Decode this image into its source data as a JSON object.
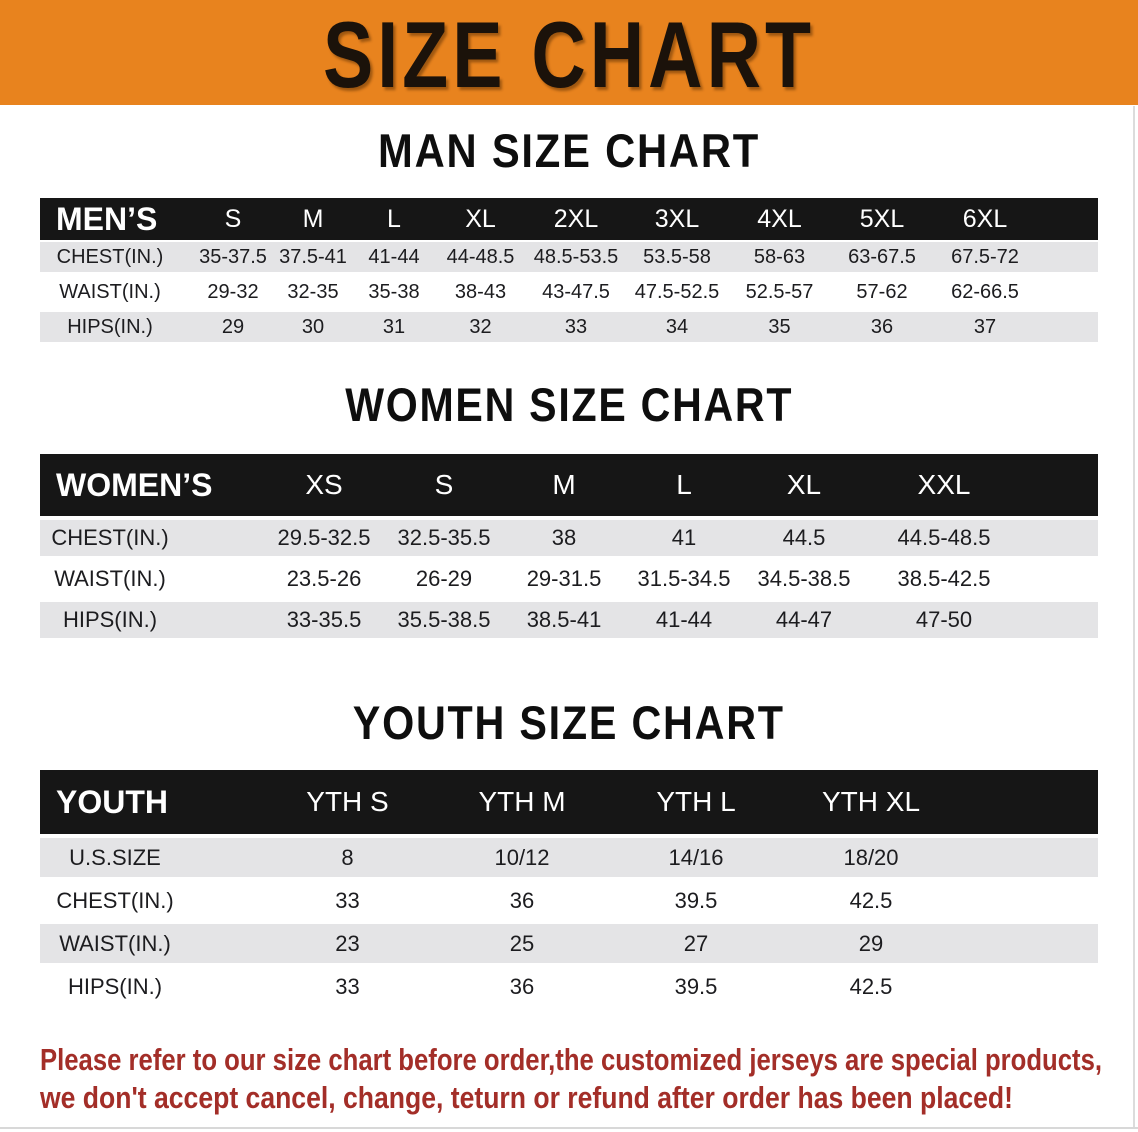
{
  "banner": {
    "title": "SIZE CHART",
    "bg": "#e8831e"
  },
  "sections": {
    "men_title": "MAN SIZE CHART",
    "women_title": "WOMEN SIZE CHART",
    "youth_title": "YOUTH SIZE CHART"
  },
  "note_line1": "Please refer to our size chart before order,the customized jerseys are special products,",
  "note_line2": "we don't accept cancel, change, teturn or refund after order has been placed!",
  "note_color": "#a32e28",
  "chart_data": [
    {
      "type": "table",
      "title": "MAN SIZE CHART",
      "corner": "MEN’S",
      "columns": [
        "S",
        "M",
        "L",
        "XL",
        "2XL",
        "3XL",
        "4XL",
        "5XL",
        "6XL"
      ],
      "rows": [
        {
          "label": "CHEST(IN.)",
          "values": [
            "35-37.5",
            "37.5-41",
            "41-44",
            "44-48.5",
            "48.5-53.5",
            "53.5-58",
            "58-63",
            "63-67.5",
            "67.5-72"
          ]
        },
        {
          "label": "WAIST(IN.)",
          "values": [
            "29-32",
            "32-35",
            "35-38",
            "38-43",
            "43-47.5",
            "47.5-52.5",
            "52.5-57",
            "57-62",
            "62-66.5"
          ]
        },
        {
          "label": "HIPS(IN.)",
          "values": [
            "29",
            "30",
            "31",
            "32",
            "33",
            "34",
            "35",
            "36",
            "37"
          ]
        }
      ]
    },
    {
      "type": "table",
      "title": "WOMEN SIZE CHART",
      "corner": "WOMEN’S",
      "columns": [
        "XS",
        "S",
        "M",
        "L",
        "XL",
        "XXL"
      ],
      "rows": [
        {
          "label": "CHEST(IN.)",
          "values": [
            "29.5-32.5",
            "32.5-35.5",
            "38",
            "41",
            "44.5",
            "44.5-48.5"
          ]
        },
        {
          "label": "WAIST(IN.)",
          "values": [
            "23.5-26",
            "26-29",
            "29-31.5",
            "31.5-34.5",
            "34.5-38.5",
            "38.5-42.5"
          ]
        },
        {
          "label": "HIPS(IN.)",
          "values": [
            "33-35.5",
            "35.5-38.5",
            "38.5-41",
            "41-44",
            "44-47",
            "47-50"
          ]
        }
      ]
    },
    {
      "type": "table",
      "title": "YOUTH SIZE CHART",
      "corner": "YOUTH",
      "columns": [
        "YTH S",
        "YTH M",
        "YTH L",
        "YTH XL"
      ],
      "rows": [
        {
          "label": "U.S.SIZE",
          "values": [
            "8",
            "10/12",
            "14/16",
            "18/20"
          ]
        },
        {
          "label": "CHEST(IN.)",
          "values": [
            "33",
            "36",
            "39.5",
            "42.5"
          ]
        },
        {
          "label": "WAIST(IN.)",
          "values": [
            "23",
            "25",
            "27",
            "29"
          ]
        },
        {
          "label": "HIPS(IN.)",
          "values": [
            "33",
            "36",
            "39.5",
            "42.5"
          ]
        }
      ]
    }
  ]
}
